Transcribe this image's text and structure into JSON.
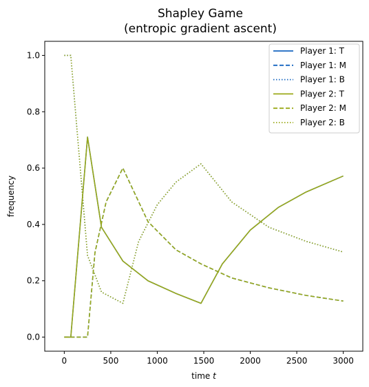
{
  "chart_data": {
    "type": "line",
    "title_line1": "Shapley Game",
    "title_line2": "(entropic gradient ascent)",
    "xlabel_prefix": "time ",
    "xlabel_var": "t",
    "ylabel": "frequency",
    "xlim": [
      -210,
      3210
    ],
    "ylim": [
      -0.05,
      1.05
    ],
    "xticks": [
      0,
      500,
      1000,
      1500,
      2000,
      2500,
      3000
    ],
    "xtick_labels": [
      "0",
      "500",
      "1000",
      "1500",
      "2000",
      "2500",
      "3000"
    ],
    "yticks": [
      0.0,
      0.2,
      0.4,
      0.6,
      0.8,
      1.0
    ],
    "ytick_labels": [
      "0.0",
      "0.2",
      "0.4",
      "0.6",
      "0.8",
      "1.0"
    ],
    "grid": false,
    "legend_position": "top-right",
    "series": [
      {
        "name": "Player 1: T",
        "color": "#1565c0",
        "dash": "solid",
        "x": [
          0,
          70,
          250,
          400,
          630,
          900,
          1200,
          1470,
          1700,
          2000,
          2300,
          2600,
          3000
        ],
        "y": [
          0.0,
          0.0,
          0.71,
          0.39,
          0.27,
          0.2,
          0.155,
          0.12,
          0.26,
          0.38,
          0.46,
          0.515,
          0.572
        ]
      },
      {
        "name": "Player 1: M",
        "color": "#1565c0",
        "dash": "dashed",
        "x": [
          0,
          250,
          330,
          450,
          630,
          900,
          1200,
          1470,
          1800,
          2200,
          2600,
          3000
        ],
        "y": [
          0.0,
          0.0,
          0.3,
          0.48,
          0.6,
          0.41,
          0.31,
          0.26,
          0.21,
          0.175,
          0.148,
          0.128
        ]
      },
      {
        "name": "Player 1: B",
        "color": "#1565c0",
        "dash": "dotted",
        "x": [
          0,
          70,
          250,
          400,
          630,
          800,
          1000,
          1200,
          1470,
          1800,
          2200,
          2600,
          3000
        ],
        "y": [
          1.0,
          1.0,
          0.29,
          0.16,
          0.12,
          0.34,
          0.47,
          0.55,
          0.615,
          0.48,
          0.39,
          0.34,
          0.302
        ]
      },
      {
        "name": "Player 2: T",
        "color": "#9ba918",
        "dash": "solid",
        "x": [
          0,
          70,
          250,
          400,
          630,
          900,
          1200,
          1470,
          1700,
          2000,
          2300,
          2600,
          3000
        ],
        "y": [
          0.0,
          0.0,
          0.71,
          0.39,
          0.27,
          0.2,
          0.155,
          0.12,
          0.26,
          0.38,
          0.46,
          0.515,
          0.572
        ]
      },
      {
        "name": "Player 2: M",
        "color": "#9ba918",
        "dash": "dashed",
        "x": [
          0,
          250,
          330,
          450,
          630,
          900,
          1200,
          1470,
          1800,
          2200,
          2600,
          3000
        ],
        "y": [
          0.0,
          0.0,
          0.3,
          0.48,
          0.6,
          0.41,
          0.31,
          0.26,
          0.21,
          0.175,
          0.148,
          0.128
        ]
      },
      {
        "name": "Player 2: B",
        "color": "#9ba918",
        "dash": "dotted",
        "x": [
          0,
          70,
          250,
          400,
          630,
          800,
          1000,
          1200,
          1470,
          1800,
          2200,
          2600,
          3000
        ],
        "y": [
          1.0,
          1.0,
          0.29,
          0.16,
          0.12,
          0.34,
          0.47,
          0.55,
          0.615,
          0.48,
          0.39,
          0.34,
          0.302
        ]
      }
    ]
  }
}
